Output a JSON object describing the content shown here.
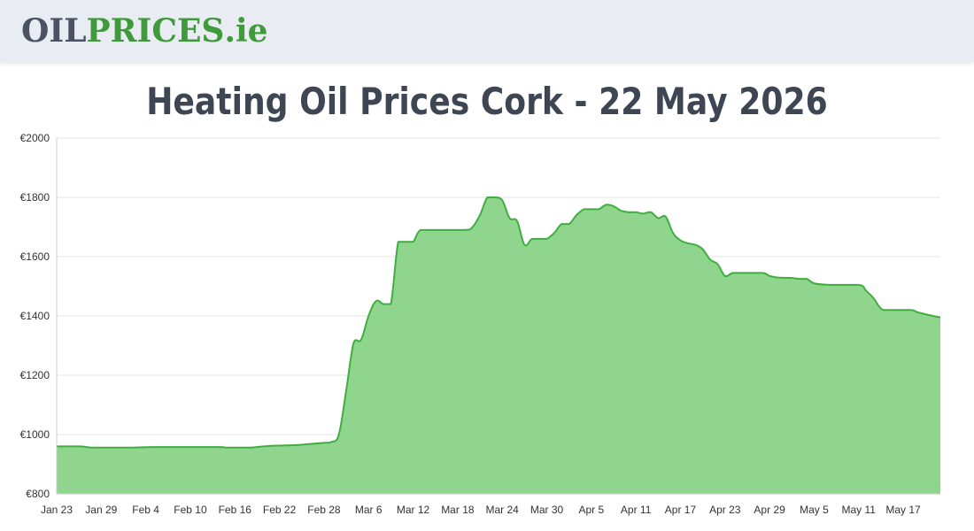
{
  "header": {
    "logo": {
      "part1": "OIL",
      "part2": "PRICES",
      "part3": ".ie",
      "colors": {
        "part1": "#4b5363",
        "part2": "#3f9a3b",
        "part3": "#3f9a3b"
      }
    }
  },
  "page_title": "Heating Oil Prices Cork - 22 May 2026",
  "chart_data": {
    "type": "area",
    "title": "Heating Oil Prices Cork - 22 May 2026",
    "xlabel": "",
    "ylabel": "",
    "ylim": [
      800,
      2000
    ],
    "y_ticks": [
      800,
      1000,
      1200,
      1400,
      1600,
      1800,
      2000
    ],
    "y_tick_prefix": "€",
    "x_range": [
      "2026-01-23",
      "2026-05-22"
    ],
    "x_tick_labels": [
      {
        "date": "2026-01-23",
        "label": "Jan 23"
      },
      {
        "date": "2026-01-29",
        "label": "Jan 29"
      },
      {
        "date": "2026-02-04",
        "label": "Feb 4"
      },
      {
        "date": "2026-02-10",
        "label": "Feb 10"
      },
      {
        "date": "2026-02-16",
        "label": "Feb 16"
      },
      {
        "date": "2026-02-22",
        "label": "Feb 22"
      },
      {
        "date": "2026-02-28",
        "label": "Feb 28"
      },
      {
        "date": "2026-03-06",
        "label": "Mar 6"
      },
      {
        "date": "2026-03-12",
        "label": "Mar 12"
      },
      {
        "date": "2026-03-18",
        "label": "Mar 18"
      },
      {
        "date": "2026-03-24",
        "label": "Mar 24"
      },
      {
        "date": "2026-03-30",
        "label": "Mar 30"
      },
      {
        "date": "2026-04-05",
        "label": "Apr 5"
      },
      {
        "date": "2026-04-11",
        "label": "Apr 11"
      },
      {
        "date": "2026-04-17",
        "label": "Apr 17"
      },
      {
        "date": "2026-04-23",
        "label": "Apr 23"
      },
      {
        "date": "2026-04-29",
        "label": "Apr 29"
      },
      {
        "date": "2026-05-05",
        "label": "May 5"
      },
      {
        "date": "2026-05-11",
        "label": "May 11"
      },
      {
        "date": "2026-05-17",
        "label": "May 17"
      }
    ],
    "grid": true,
    "legend": "none",
    "colors": {
      "line": "#3fae3f",
      "fill": "#90d58e",
      "grid": "#e6e6e6",
      "axis": "#cccccc"
    },
    "series": [
      {
        "points": [
          [
            "2026-01-23",
            960
          ],
          [
            "2026-01-26",
            960
          ],
          [
            "2026-01-27",
            958
          ],
          [
            "2026-01-28",
            956
          ],
          [
            "2026-02-02",
            956
          ],
          [
            "2026-02-05",
            958
          ],
          [
            "2026-02-10",
            958
          ],
          [
            "2026-02-14",
            958
          ],
          [
            "2026-02-15",
            956
          ],
          [
            "2026-02-18",
            956
          ],
          [
            "2026-02-19",
            958
          ],
          [
            "2026-02-21",
            962
          ],
          [
            "2026-02-24",
            964
          ],
          [
            "2026-02-26",
            968
          ],
          [
            "2026-02-28",
            972
          ],
          [
            "2026-03-01",
            975
          ],
          [
            "2026-03-02",
            1000
          ],
          [
            "2026-03-03",
            1150
          ],
          [
            "2026-03-04",
            1310
          ],
          [
            "2026-03-05",
            1320
          ],
          [
            "2026-03-06",
            1400
          ],
          [
            "2026-03-07",
            1450
          ],
          [
            "2026-03-08",
            1440
          ],
          [
            "2026-03-09",
            1440
          ],
          [
            "2026-03-10",
            1650
          ],
          [
            "2026-03-11",
            1650
          ],
          [
            "2026-03-12",
            1650
          ],
          [
            "2026-03-13",
            1690
          ],
          [
            "2026-03-15",
            1690
          ],
          [
            "2026-03-19",
            1690
          ],
          [
            "2026-03-20",
            1700
          ],
          [
            "2026-03-21",
            1740
          ],
          [
            "2026-03-22",
            1800
          ],
          [
            "2026-03-23",
            1800
          ],
          [
            "2026-03-24",
            1790
          ],
          [
            "2026-03-25",
            1730
          ],
          [
            "2026-03-26",
            1720
          ],
          [
            "2026-03-27",
            1640
          ],
          [
            "2026-03-28",
            1660
          ],
          [
            "2026-03-29",
            1660
          ],
          [
            "2026-03-30",
            1660
          ],
          [
            "2026-03-31",
            1680
          ],
          [
            "2026-04-01",
            1710
          ],
          [
            "2026-04-02",
            1710
          ],
          [
            "2026-04-03",
            1740
          ],
          [
            "2026-04-04",
            1760
          ],
          [
            "2026-04-05",
            1760
          ],
          [
            "2026-04-06",
            1760
          ],
          [
            "2026-04-07",
            1775
          ],
          [
            "2026-04-08",
            1770
          ],
          [
            "2026-04-09",
            1755
          ],
          [
            "2026-04-10",
            1750
          ],
          [
            "2026-04-11",
            1750
          ],
          [
            "2026-04-12",
            1745
          ],
          [
            "2026-04-13",
            1750
          ],
          [
            "2026-04-14",
            1730
          ],
          [
            "2026-04-15",
            1735
          ],
          [
            "2026-04-16",
            1680
          ],
          [
            "2026-04-17",
            1655
          ],
          [
            "2026-04-18",
            1645
          ],
          [
            "2026-04-19",
            1640
          ],
          [
            "2026-04-20",
            1625
          ],
          [
            "2026-04-21",
            1590
          ],
          [
            "2026-04-22",
            1575
          ],
          [
            "2026-04-23",
            1535
          ],
          [
            "2026-04-24",
            1545
          ],
          [
            "2026-04-25",
            1545
          ],
          [
            "2026-04-28",
            1545
          ],
          [
            "2026-04-29",
            1535
          ],
          [
            "2026-04-30",
            1530
          ],
          [
            "2026-05-02",
            1528
          ],
          [
            "2026-05-03",
            1525
          ],
          [
            "2026-05-04",
            1525
          ],
          [
            "2026-05-05",
            1510
          ],
          [
            "2026-05-07",
            1505
          ],
          [
            "2026-05-11",
            1505
          ],
          [
            "2026-05-12",
            1485
          ],
          [
            "2026-05-13",
            1460
          ],
          [
            "2026-05-14",
            1425
          ],
          [
            "2026-05-15",
            1420
          ],
          [
            "2026-05-18",
            1420
          ],
          [
            "2026-05-19",
            1412
          ],
          [
            "2026-05-21",
            1400
          ],
          [
            "2026-05-22",
            1395
          ]
        ]
      }
    ]
  }
}
